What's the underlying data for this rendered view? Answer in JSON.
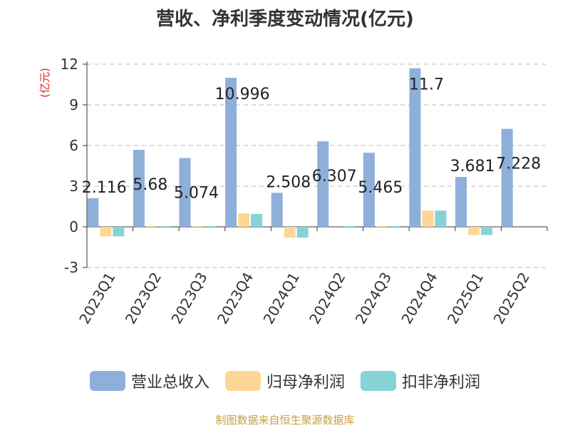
{
  "chart_data": {
    "type": "bar",
    "title": "营收、净利季度变动情况(亿元)",
    "ylabel": "(亿元)",
    "xlabel": "",
    "ylim": [
      -3,
      12
    ],
    "yticks": [
      -3,
      0,
      3,
      6,
      9,
      12
    ],
    "grid": true,
    "legend_position": "bottom",
    "categories": [
      "2023Q1",
      "2023Q2",
      "2023Q3",
      "2023Q4",
      "2024Q1",
      "2024Q2",
      "2024Q3",
      "2024Q4",
      "2025Q1",
      "2025Q2"
    ],
    "series": [
      {
        "name": "营业总收入",
        "color": "#8eafd9",
        "values": [
          2.116,
          5.68,
          5.074,
          10.996,
          2.508,
          6.307,
          5.465,
          11.7,
          3.681,
          7.228
        ],
        "labels": [
          "2.116",
          "5.68",
          "5.074",
          "10.996",
          "2.508",
          "6.307",
          "5.465",
          "11.7",
          "3.681",
          "7.228"
        ]
      },
      {
        "name": "归母净利润",
        "color": "#fed696",
        "values": [
          -0.7,
          0.05,
          0.05,
          1.0,
          -0.8,
          0.0,
          0.05,
          1.2,
          -0.6,
          0.0
        ]
      },
      {
        "name": "扣非净利润",
        "color": "#86d3d6",
        "values": [
          -0.7,
          0.05,
          0.05,
          0.95,
          -0.8,
          0.05,
          0.05,
          1.2,
          -0.6,
          0.0
        ]
      }
    ]
  },
  "source": "制图数据来自恒生聚源数据库"
}
